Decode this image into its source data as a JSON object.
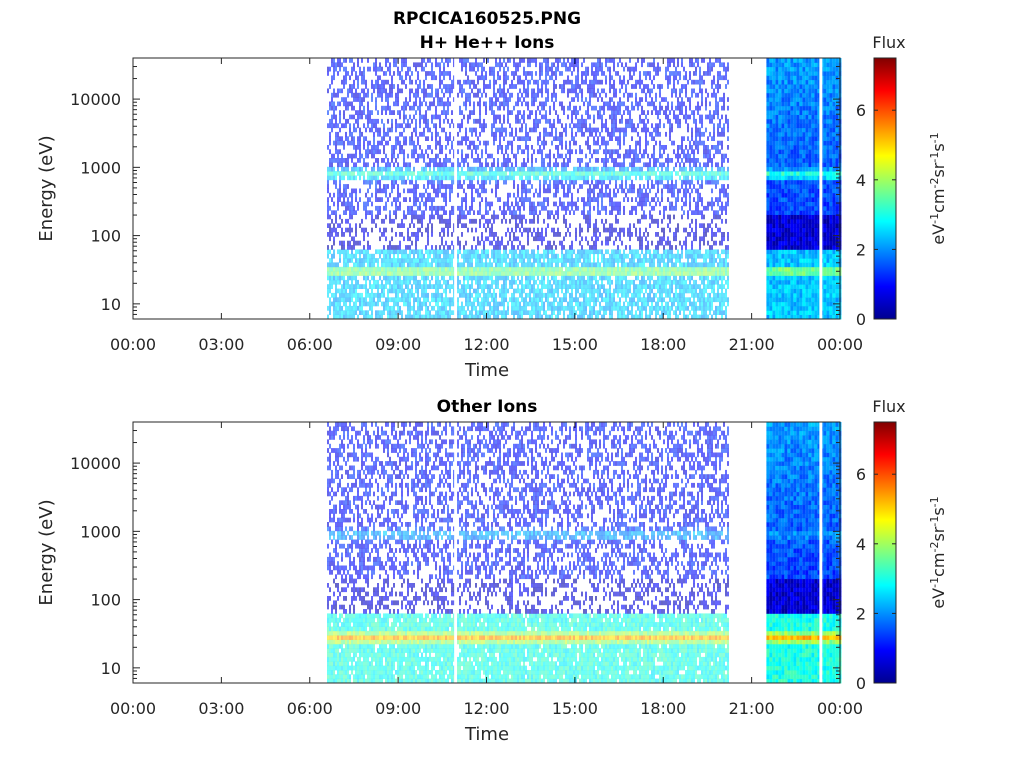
{
  "figure": {
    "title_line1": "RPCICA160525.PNG"
  },
  "chart_data": [
    {
      "type": "heatmap",
      "title": "H+ He++ Ions",
      "xlabel": "Time",
      "ylabel": "Energy (eV)",
      "x_tick_labels": [
        "00:00",
        "03:00",
        "06:00",
        "09:00",
        "12:00",
        "15:00",
        "18:00",
        "21:00",
        "00:00"
      ],
      "x_ticks_hours": [
        0,
        3,
        6,
        9,
        12,
        15,
        18,
        21,
        24
      ],
      "xlim_hours": [
        0,
        24
      ],
      "y_scale": "log",
      "y_tick_labels": [
        "10",
        "100",
        "1000",
        "10000"
      ],
      "y_ticks": [
        10,
        100,
        1000,
        10000
      ],
      "ylim": [
        6,
        40000
      ],
      "colorbar": {
        "label_top": "Flux",
        "unit": "eV-1cm-2sr-1s-1",
        "ticks": [
          "0",
          "2",
          "4",
          "6"
        ],
        "range": [
          0,
          7.5
        ]
      },
      "data_segments_hours": [
        [
          6.6,
          20.2
        ],
        [
          21.5,
          24.0
        ]
      ],
      "bands": [
        {
          "energy_eV": 800,
          "flux": 3.1
        },
        {
          "energy_eV": 30,
          "flux": 3.9
        }
      ]
    },
    {
      "type": "heatmap",
      "title": "Other Ions",
      "xlabel": "Time",
      "ylabel": "Energy (eV)",
      "x_tick_labels": [
        "00:00",
        "03:00",
        "06:00",
        "09:00",
        "12:00",
        "15:00",
        "18:00",
        "21:00",
        "00:00"
      ],
      "x_ticks_hours": [
        0,
        3,
        6,
        9,
        12,
        15,
        18,
        21,
        24
      ],
      "xlim_hours": [
        0,
        24
      ],
      "y_scale": "log",
      "y_tick_labels": [
        "10",
        "100",
        "1000",
        "10000"
      ],
      "y_ticks": [
        10,
        100,
        1000,
        10000
      ],
      "ylim": [
        6,
        40000
      ],
      "colorbar": {
        "label_top": "Flux",
        "unit": "eV-1cm-2sr-1s-1",
        "ticks": [
          "0",
          "2",
          "4",
          "6"
        ],
        "range": [
          0,
          7.5
        ]
      },
      "data_segments_hours": [
        [
          6.6,
          20.2
        ],
        [
          21.5,
          24.0
        ]
      ],
      "bands": [
        {
          "energy_eV": 900,
          "flux": 2.2
        },
        {
          "energy_eV": 28,
          "flux": 5.2
        }
      ]
    }
  ]
}
